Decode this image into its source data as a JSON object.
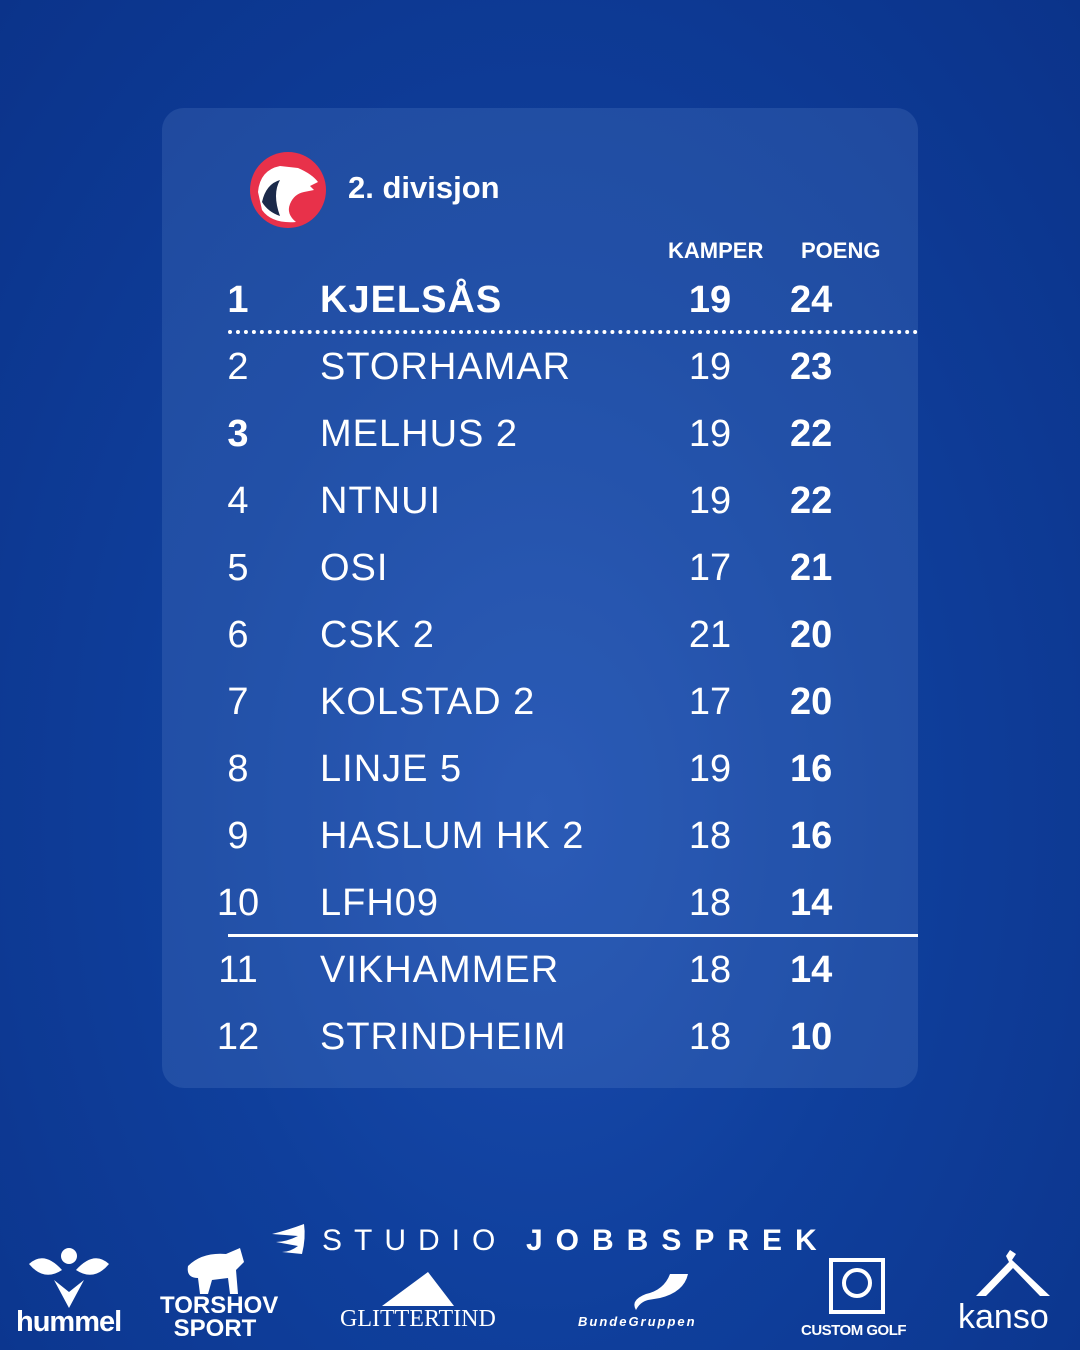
{
  "header": {
    "title": "2. divisjon",
    "col_games": "KAMPER",
    "col_points": "POENG"
  },
  "colors": {
    "logo_red": "#e8314a",
    "logo_navy": "#1b2a4a"
  },
  "standings": [
    {
      "pos": "1",
      "team": "KJELSÅS",
      "games": "19",
      "points": "24"
    },
    {
      "pos": "2",
      "team": "STORHAMAR",
      "games": "19",
      "points": "23"
    },
    {
      "pos": "3",
      "team": "MELHUS 2",
      "games": "19",
      "points": "22"
    },
    {
      "pos": "4",
      "team": "NTNUI",
      "games": "19",
      "points": "22"
    },
    {
      "pos": "5",
      "team": "OSI",
      "games": "17",
      "points": "21"
    },
    {
      "pos": "6",
      "team": "CSK 2",
      "games": "21",
      "points": "20"
    },
    {
      "pos": "7",
      "team": "KOLSTAD 2",
      "games": "17",
      "points": "20"
    },
    {
      "pos": "8",
      "team": "LINJE 5",
      "games": "19",
      "points": "16"
    },
    {
      "pos": "9",
      "team": "HASLUM HK 2",
      "games": "18",
      "points": "16"
    },
    {
      "pos": "10",
      "team": "LFH09",
      "games": "18",
      "points": "14"
    },
    {
      "pos": "11",
      "team": "VIKHAMMER",
      "games": "18",
      "points": "14"
    },
    {
      "pos": "12",
      "team": "STRINDHEIM",
      "games": "18",
      "points": "10"
    }
  ],
  "sponsors": {
    "studio_a": "STUDIO",
    "studio_b": "JOBBSPREK",
    "hummel": "hummel",
    "torshov1": "TORSHOV",
    "torshov2": "SPORT",
    "glittertind": "GLITTERTIND",
    "bunde": "BundeGruppen",
    "customgolf": "CUSTOM GOLF",
    "kanso": "kanso"
  }
}
